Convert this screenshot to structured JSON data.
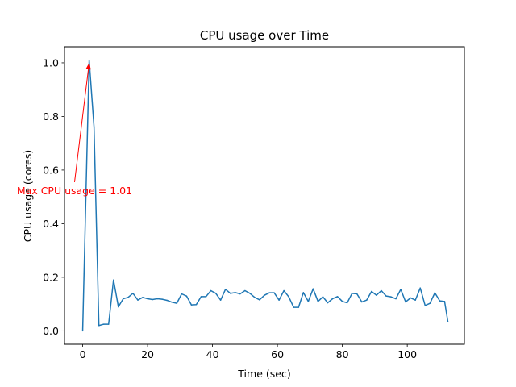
{
  "chart_data": {
    "type": "line",
    "title": "CPU usage over Time",
    "xlabel": "Time (sec)",
    "ylabel": "CPU usage (cores)",
    "xlim": [
      -5.6,
      117.6
    ],
    "ylim": [
      -0.05,
      1.06
    ],
    "xticks": [
      0,
      20,
      40,
      60,
      80,
      100
    ],
    "yticks": [
      0.0,
      0.2,
      0.4,
      0.6,
      0.8,
      1.0
    ],
    "xtick_labels": [
      "0",
      "20",
      "40",
      "60",
      "80",
      "100"
    ],
    "ytick_labels": [
      "0.0",
      "0.2",
      "0.4",
      "0.6",
      "0.8",
      "1.0"
    ],
    "grid": false,
    "series": [
      {
        "color": "#1f77b4",
        "x": [
          0,
          2,
          3.5,
          5,
          6.5,
          8,
          9.5,
          11,
          12.5,
          14,
          15.5,
          17,
          18.5,
          20,
          21.5,
          23,
          24.5,
          26,
          27.5,
          29,
          30.5,
          32,
          33.5,
          35,
          36.5,
          38,
          39.5,
          41,
          42.5,
          44,
          45.5,
          47,
          48.5,
          50,
          51.5,
          53,
          54.5,
          56,
          57.5,
          59,
          60.5,
          62,
          63.5,
          65,
          66.5,
          68,
          69.5,
          71,
          72.5,
          74,
          75.5,
          77,
          78.5,
          80,
          81.5,
          83,
          84.5,
          86,
          87.5,
          89,
          90.5,
          92,
          93.5,
          95,
          96.5,
          98,
          99.5,
          101,
          102.5,
          104,
          105.5,
          107,
          108.5,
          110,
          111.5,
          112.5
        ],
        "y": [
          0.0,
          1.01,
          0.76,
          0.02,
          0.025,
          0.025,
          0.19,
          0.09,
          0.12,
          0.125,
          0.14,
          0.115,
          0.125,
          0.12,
          0.117,
          0.12,
          0.118,
          0.114,
          0.107,
          0.103,
          0.138,
          0.13,
          0.097,
          0.098,
          0.128,
          0.128,
          0.15,
          0.14,
          0.115,
          0.155,
          0.14,
          0.143,
          0.138,
          0.15,
          0.14,
          0.125,
          0.116,
          0.133,
          0.142,
          0.142,
          0.115,
          0.15,
          0.127,
          0.088,
          0.088,
          0.143,
          0.11,
          0.157,
          0.11,
          0.127,
          0.105,
          0.12,
          0.128,
          0.11,
          0.105,
          0.14,
          0.138,
          0.108,
          0.115,
          0.147,
          0.133,
          0.15,
          0.13,
          0.127,
          0.12,
          0.155,
          0.108,
          0.123,
          0.115,
          0.16,
          0.095,
          0.103,
          0.142,
          0.112,
          0.11,
          0.035
        ]
      }
    ],
    "annotation": {
      "text": "Max CPU usage = 1.01",
      "color": "#ff0000",
      "xy": [
        2,
        1.0
      ],
      "xytext": [
        -2.5,
        0.555
      ]
    }
  }
}
